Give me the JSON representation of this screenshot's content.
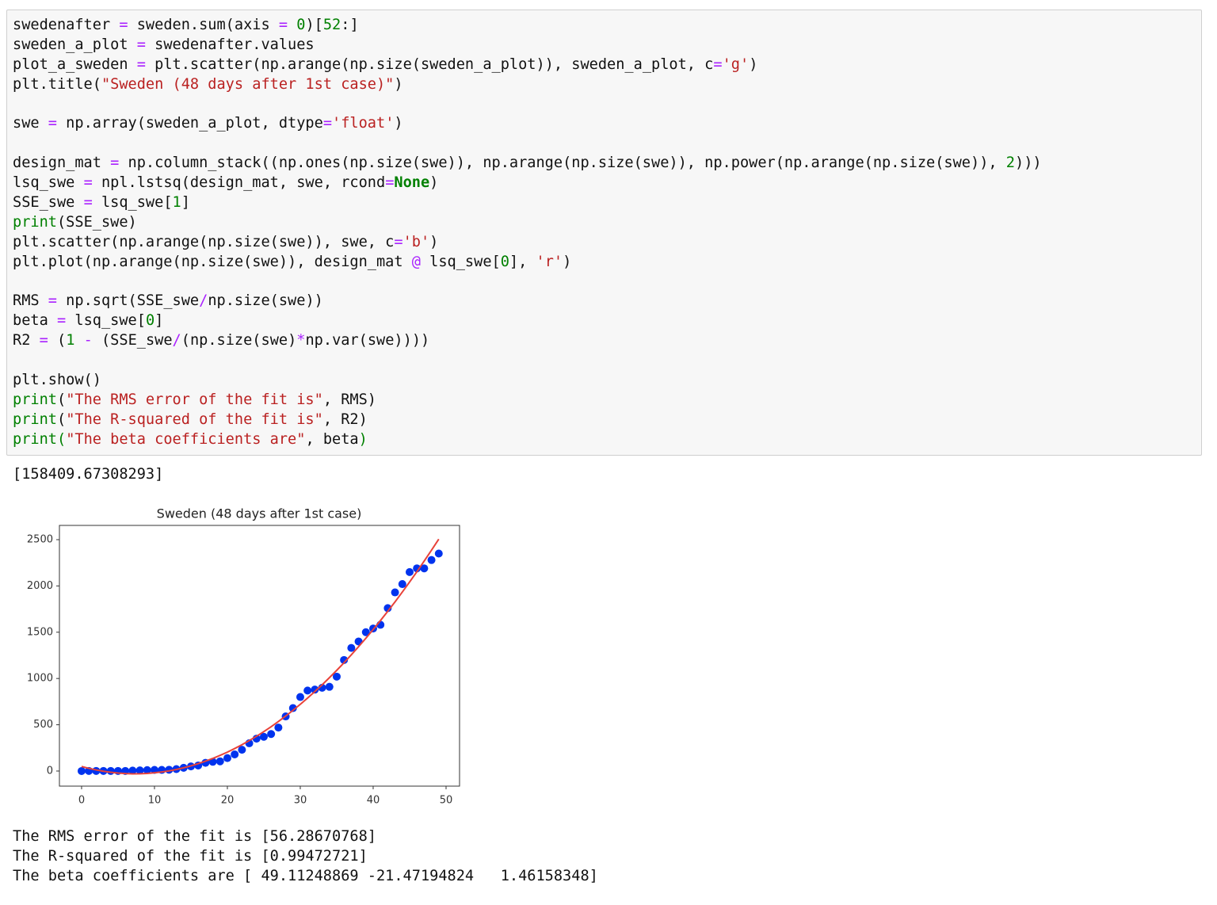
{
  "code": {
    "lines": [
      [
        "swedenafter ",
        {
          "text": "=",
          "color": "#aa22ff"
        },
        " sweden.sum(axis ",
        {
          "text": "=",
          "color": "#aa22ff"
        },
        " ",
        {
          "text": "0",
          "color": "#008000"
        },
        ")[",
        {
          "text": "52",
          "color": "#008000"
        },
        ":]"
      ],
      [
        "sweden_a_plot ",
        {
          "text": "=",
          "color": "#aa22ff"
        },
        " swedenafter.values"
      ],
      [
        "plot_a_sweden ",
        {
          "text": "=",
          "color": "#aa22ff"
        },
        " plt.scatter(np.arange(np.size(sweden_a_plot)), sweden_a_plot, c",
        {
          "text": "=",
          "color": "#aa22ff"
        },
        {
          "text": "'g'",
          "color": "#ba2121"
        },
        ")"
      ],
      [
        "plt.title(",
        {
          "text": "\"Sweden (48 days after 1st case)\"",
          "color": "#ba2121"
        },
        ")"
      ],
      [],
      [
        "swe ",
        {
          "text": "=",
          "color": "#aa22ff"
        },
        " np.array(sweden_a_plot, dtype",
        {
          "text": "=",
          "color": "#aa22ff"
        },
        {
          "text": "'float'",
          "color": "#ba2121"
        },
        ")"
      ],
      [],
      [
        "design_mat ",
        {
          "text": "=",
          "color": "#aa22ff"
        },
        " np.column_stack((np.ones(np.size(swe)), np.arange(np.size(swe)), np.power(np.arange(np.size(swe)), ",
        {
          "text": "2",
          "color": "#008000"
        },
        ")))"
      ],
      [
        "lsq_swe ",
        {
          "text": "=",
          "color": "#aa22ff"
        },
        " npl.lstsq(design_mat, swe, rcond",
        {
          "text": "=",
          "color": "#aa22ff"
        },
        {
          "text": "None",
          "color": "#008000",
          "bold": true
        },
        ")"
      ],
      [
        "SSE_swe ",
        {
          "text": "=",
          "color": "#aa22ff"
        },
        " lsq_swe[",
        {
          "text": "1",
          "color": "#008000"
        },
        "]"
      ],
      [
        {
          "text": "print",
          "color": "#008000"
        },
        "(SSE_swe)"
      ],
      [
        "plt.scatter(np.arange(np.size(swe)), swe, c",
        {
          "text": "=",
          "color": "#aa22ff"
        },
        {
          "text": "'b'",
          "color": "#ba2121"
        },
        ")"
      ],
      [
        "plt.plot(np.arange(np.size(swe)), design_mat ",
        {
          "text": "@",
          "color": "#aa22ff"
        },
        " lsq_swe[",
        {
          "text": "0",
          "color": "#008000"
        },
        "], ",
        {
          "text": "'r'",
          "color": "#ba2121"
        },
        ")"
      ],
      [],
      [
        "RMS ",
        {
          "text": "=",
          "color": "#aa22ff"
        },
        " np.sqrt(SSE_swe",
        {
          "text": "/",
          "color": "#aa22ff"
        },
        "np.size(swe))"
      ],
      [
        "beta ",
        {
          "text": "=",
          "color": "#aa22ff"
        },
        " lsq_swe[",
        {
          "text": "0",
          "color": "#008000"
        },
        "]"
      ],
      [
        "R2 ",
        {
          "text": "=",
          "color": "#aa22ff"
        },
        " (",
        {
          "text": "1",
          "color": "#008000"
        },
        " ",
        {
          "text": "-",
          "color": "#aa22ff"
        },
        " (SSE_swe",
        {
          "text": "/",
          "color": "#aa22ff"
        },
        "(np.size(swe)",
        {
          "text": "*",
          "color": "#aa22ff"
        },
        "np.var(swe))))"
      ],
      [],
      [
        "plt.show()"
      ],
      [
        {
          "text": "print",
          "color": "#008000"
        },
        "(",
        {
          "text": "\"The RMS error of the fit is\"",
          "color": "#ba2121"
        },
        ", RMS)"
      ],
      [
        {
          "text": "print",
          "color": "#008000"
        },
        "(",
        {
          "text": "\"The R-squared of the fit is\"",
          "color": "#ba2121"
        },
        ", R2)"
      ],
      [
        {
          "text": "print",
          "color": "#008000"
        },
        {
          "text": "(",
          "color": "#008000"
        },
        {
          "text": "\"The beta coefficients are\"",
          "color": "#ba2121"
        },
        ", beta",
        {
          "text": ")",
          "color": "#008000"
        }
      ]
    ]
  },
  "output": {
    "sse": "[158409.67308293]",
    "lines": [
      "The RMS error of the fit is [56.28670768]",
      "The R-squared of the fit is [0.99472721]",
      "The beta coefficients are [ 49.11248869 -21.47194824   1.46158348]"
    ]
  },
  "chart_data": {
    "type": "scatter",
    "title": "Sweden (48 days after 1st case)",
    "x": [
      0,
      1,
      2,
      3,
      4,
      5,
      6,
      7,
      8,
      9,
      10,
      11,
      12,
      13,
      14,
      15,
      16,
      17,
      18,
      19,
      20,
      21,
      22,
      23,
      24,
      25,
      26,
      27,
      28,
      29,
      30,
      31,
      32,
      33,
      34,
      35,
      36,
      37,
      38,
      39,
      40,
      41,
      42,
      43,
      44,
      45,
      46,
      47,
      48,
      49
    ],
    "series": [
      {
        "type": "scatter",
        "color": "#0033ee",
        "values": [
          0,
          1,
          1,
          1,
          1,
          1,
          1,
          5,
          7,
          10,
          12,
          12,
          14,
          21,
          35,
          50,
          60,
          89,
          100,
          105,
          140,
          180,
          230,
          300,
          350,
          370,
          400,
          470,
          590,
          680,
          800,
          870,
          880,
          900,
          910,
          1020,
          1200,
          1330,
          1400,
          1500,
          1540,
          1580,
          1760,
          1930,
          2020,
          2150,
          2190,
          2190,
          2280,
          2350
        ]
      },
      {
        "type": "line",
        "color": "#e8423a",
        "values": [
          49,
          29,
          12,
          -2,
          -13,
          -22,
          -27,
          -30,
          -29,
          -26,
          -19,
          -10,
          2,
          17,
          35,
          56,
          80,
          107,
          136,
          169,
          204,
          243,
          284,
          329,
          376,
          426,
          479,
          535,
          594,
          656,
          721,
          788,
          859,
          932,
          1009,
          1088,
          1170,
          1256,
          1344,
          1435,
          1529,
          1626,
          1726,
          1828,
          1934,
          2043,
          2154,
          2269,
          2386,
          2506
        ]
      }
    ],
    "xlim": [
      -3.04,
      51.85
    ],
    "ylim": [
      -163,
      2654
    ],
    "xticks": [
      0,
      10,
      20,
      30,
      40,
      50
    ],
    "yticks": [
      0,
      500,
      1000,
      1500,
      2000,
      2500
    ]
  }
}
